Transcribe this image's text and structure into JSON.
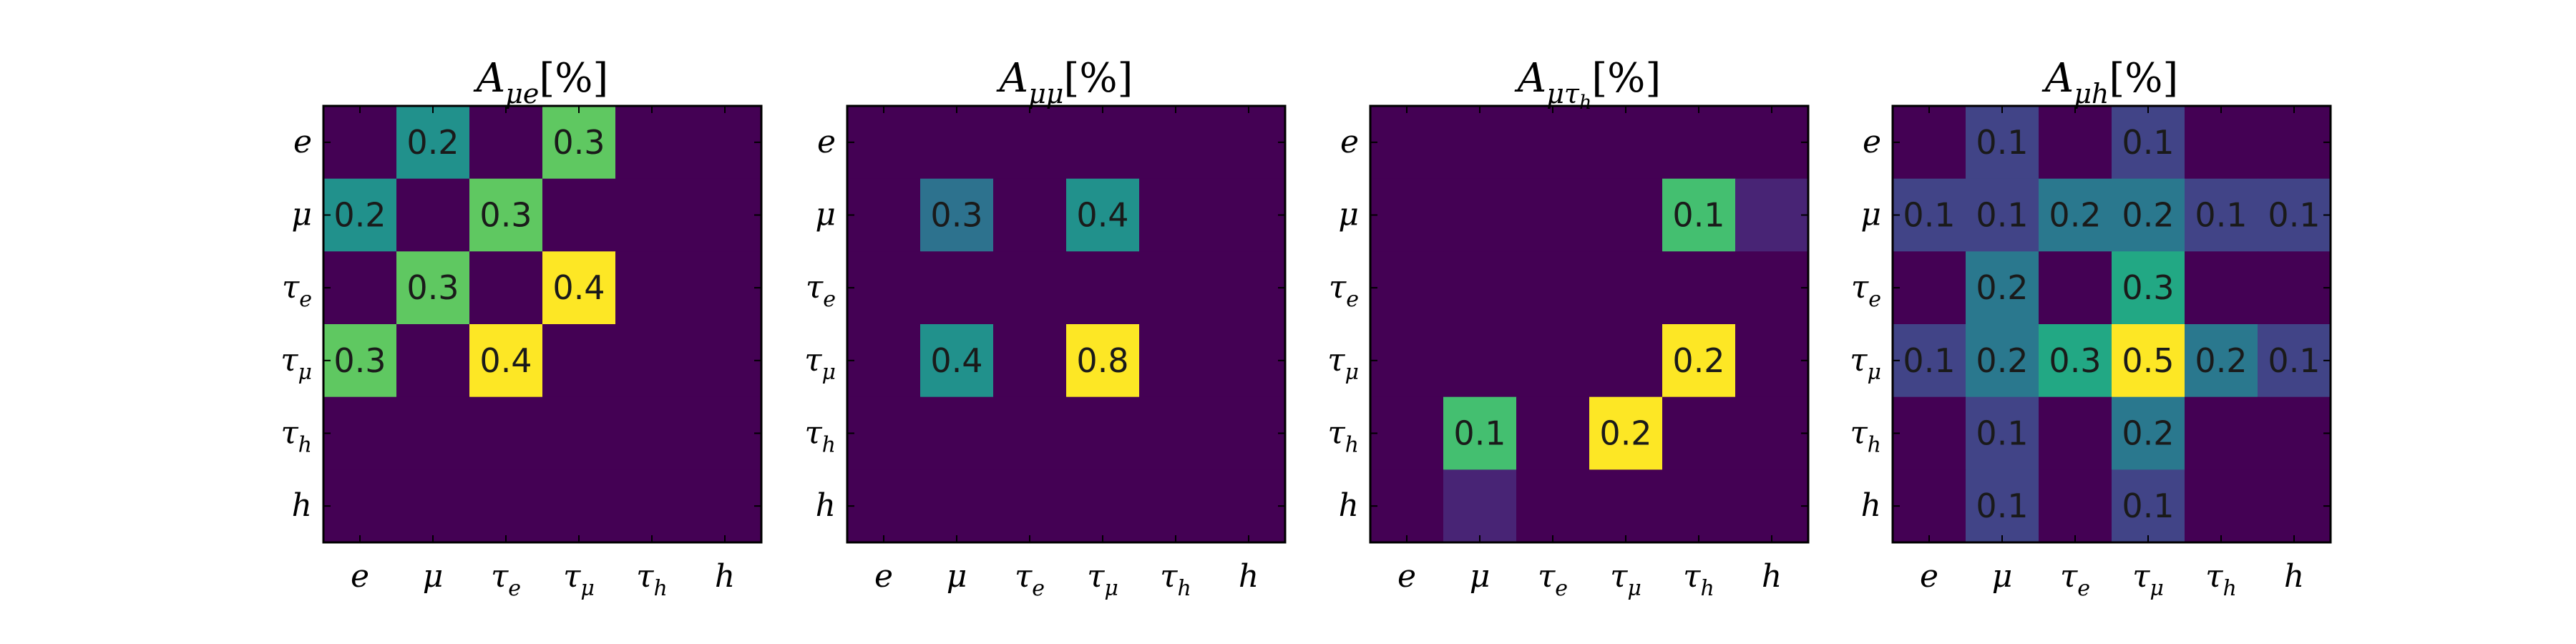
{
  "chart_data": [
    {
      "type": "heatmap",
      "title": "A_{μe}[%]",
      "title_parts": {
        "base": "A",
        "sub": "μe",
        "suffix": "[%]"
      },
      "x_categories": [
        {
          "base": "e",
          "sub": ""
        },
        {
          "base": "μ",
          "sub": ""
        },
        {
          "base": "τ",
          "sub": "e"
        },
        {
          "base": "τ",
          "sub": "μ"
        },
        {
          "base": "τ",
          "sub": "h"
        },
        {
          "base": "h",
          "sub": ""
        }
      ],
      "y_categories": [
        {
          "base": "e",
          "sub": ""
        },
        {
          "base": "μ",
          "sub": ""
        },
        {
          "base": "τ",
          "sub": "e"
        },
        {
          "base": "τ",
          "sub": "μ"
        },
        {
          "base": "τ",
          "sub": "h"
        },
        {
          "base": "h",
          "sub": ""
        }
      ],
      "values": [
        [
          0,
          0.2,
          0,
          0.3,
          0,
          0
        ],
        [
          0.2,
          0,
          0.3,
          0,
          0,
          0
        ],
        [
          0,
          0.3,
          0,
          0.4,
          0,
          0
        ],
        [
          0.3,
          0,
          0.4,
          0,
          0,
          0
        ],
        [
          0,
          0,
          0,
          0,
          0,
          0
        ],
        [
          0,
          0,
          0,
          0,
          0,
          0
        ]
      ],
      "cell_labels": [
        [
          "",
          "0.2",
          "",
          "0.3",
          "",
          ""
        ],
        [
          "0.2",
          "",
          "0.3",
          "",
          "",
          ""
        ],
        [
          "",
          "0.3",
          "",
          "0.4",
          "",
          ""
        ],
        [
          "0.3",
          "",
          "0.4",
          "",
          "",
          ""
        ],
        [
          "",
          "",
          "",
          "",
          "",
          ""
        ],
        [
          "",
          "",
          "",
          "",
          "",
          ""
        ]
      ],
      "color_range": [
        0,
        0.4
      ],
      "colormap": "viridis"
    },
    {
      "type": "heatmap",
      "title": "A_{μμ}[%]",
      "title_parts": {
        "base": "A",
        "sub": "μμ",
        "suffix": "[%]"
      },
      "x_categories": [
        {
          "base": "e",
          "sub": ""
        },
        {
          "base": "μ",
          "sub": ""
        },
        {
          "base": "τ",
          "sub": "e"
        },
        {
          "base": "τ",
          "sub": "μ"
        },
        {
          "base": "τ",
          "sub": "h"
        },
        {
          "base": "h",
          "sub": ""
        }
      ],
      "y_categories": [
        {
          "base": "e",
          "sub": ""
        },
        {
          "base": "μ",
          "sub": ""
        },
        {
          "base": "τ",
          "sub": "e"
        },
        {
          "base": "τ",
          "sub": "μ"
        },
        {
          "base": "τ",
          "sub": "h"
        },
        {
          "base": "h",
          "sub": ""
        }
      ],
      "values": [
        [
          0,
          0,
          0,
          0,
          0,
          0
        ],
        [
          0,
          0.3,
          0,
          0.4,
          0,
          0
        ],
        [
          0,
          0,
          0,
          0,
          0,
          0
        ],
        [
          0,
          0.4,
          0,
          0.8,
          0,
          0
        ],
        [
          0,
          0,
          0,
          0,
          0,
          0
        ],
        [
          0,
          0,
          0,
          0,
          0,
          0
        ]
      ],
      "cell_labels": [
        [
          "",
          "",
          "",
          "",
          "",
          ""
        ],
        [
          "",
          "0.3",
          "",
          "0.4",
          "",
          ""
        ],
        [
          "",
          "",
          "",
          "",
          "",
          ""
        ],
        [
          "",
          "0.4",
          "",
          "0.8",
          "",
          ""
        ],
        [
          "",
          "",
          "",
          "",
          "",
          ""
        ],
        [
          "",
          "",
          "",
          "",
          "",
          ""
        ]
      ],
      "color_range": [
        0,
        0.8
      ],
      "colormap": "viridis"
    },
    {
      "type": "heatmap",
      "title": "A_{μτ_h}[%]",
      "title_parts": {
        "base": "A",
        "sub": "μτ",
        "subsub": "h",
        "suffix": "[%]"
      },
      "x_categories": [
        {
          "base": "e",
          "sub": ""
        },
        {
          "base": "μ",
          "sub": ""
        },
        {
          "base": "τ",
          "sub": "e"
        },
        {
          "base": "τ",
          "sub": "μ"
        },
        {
          "base": "τ",
          "sub": "h"
        },
        {
          "base": "h",
          "sub": ""
        }
      ],
      "y_categories": [
        {
          "base": "e",
          "sub": ""
        },
        {
          "base": "μ",
          "sub": ""
        },
        {
          "base": "τ",
          "sub": "e"
        },
        {
          "base": "τ",
          "sub": "μ"
        },
        {
          "base": "τ",
          "sub": "h"
        },
        {
          "base": "h",
          "sub": ""
        }
      ],
      "values": [
        [
          0,
          0,
          0,
          0,
          0,
          0
        ],
        [
          0,
          0,
          0,
          0,
          0.14,
          0.02
        ],
        [
          0,
          0,
          0,
          0,
          0,
          0
        ],
        [
          0,
          0,
          0,
          0,
          0.2,
          0
        ],
        [
          0,
          0.14,
          0,
          0.2,
          0,
          0
        ],
        [
          0,
          0.02,
          0,
          0,
          0,
          0
        ]
      ],
      "cell_labels": [
        [
          "",
          "",
          "",
          "",
          "",
          ""
        ],
        [
          "",
          "",
          "",
          "",
          "0.1",
          ""
        ],
        [
          "",
          "",
          "",
          "",
          "",
          ""
        ],
        [
          "",
          "",
          "",
          "",
          "0.2",
          ""
        ],
        [
          "",
          "0.1",
          "",
          "0.2",
          "",
          ""
        ],
        [
          "",
          "",
          "",
          "",
          "",
          ""
        ]
      ],
      "color_range": [
        0,
        0.2
      ],
      "colormap": "viridis"
    },
    {
      "type": "heatmap",
      "title": "A_{μh}[%]",
      "title_parts": {
        "base": "A",
        "sub": "μh",
        "suffix": "[%]"
      },
      "x_categories": [
        {
          "base": "e",
          "sub": ""
        },
        {
          "base": "μ",
          "sub": ""
        },
        {
          "base": "τ",
          "sub": "e"
        },
        {
          "base": "τ",
          "sub": "μ"
        },
        {
          "base": "τ",
          "sub": "h"
        },
        {
          "base": "h",
          "sub": ""
        }
      ],
      "y_categories": [
        {
          "base": "e",
          "sub": ""
        },
        {
          "base": "μ",
          "sub": ""
        },
        {
          "base": "τ",
          "sub": "e"
        },
        {
          "base": "τ",
          "sub": "μ"
        },
        {
          "base": "τ",
          "sub": "h"
        },
        {
          "base": "h",
          "sub": ""
        }
      ],
      "values": [
        [
          0,
          0.1,
          0,
          0.1,
          0,
          0
        ],
        [
          0.1,
          0.1,
          0.2,
          0.2,
          0.1,
          0.1
        ],
        [
          0,
          0.2,
          0,
          0.3,
          0,
          0
        ],
        [
          0.1,
          0.2,
          0.3,
          0.5,
          0.2,
          0.1
        ],
        [
          0,
          0.1,
          0,
          0.2,
          0,
          0
        ],
        [
          0,
          0.1,
          0,
          0.1,
          0,
          0
        ]
      ],
      "cell_labels": [
        [
          "",
          "0.1",
          "",
          "0.1",
          "",
          ""
        ],
        [
          "0.1",
          "0.1",
          "0.2",
          "0.2",
          "0.1",
          "0.1"
        ],
        [
          "",
          "0.2",
          "",
          "0.3",
          "",
          ""
        ],
        [
          "0.1",
          "0.2",
          "0.3",
          "0.5",
          "0.2",
          "0.1"
        ],
        [
          "",
          "0.1",
          "",
          "0.2",
          "",
          ""
        ],
        [
          "",
          "0.1",
          "",
          "0.1",
          "",
          ""
        ]
      ],
      "color_range": [
        0,
        0.5
      ],
      "colormap": "viridis"
    }
  ]
}
